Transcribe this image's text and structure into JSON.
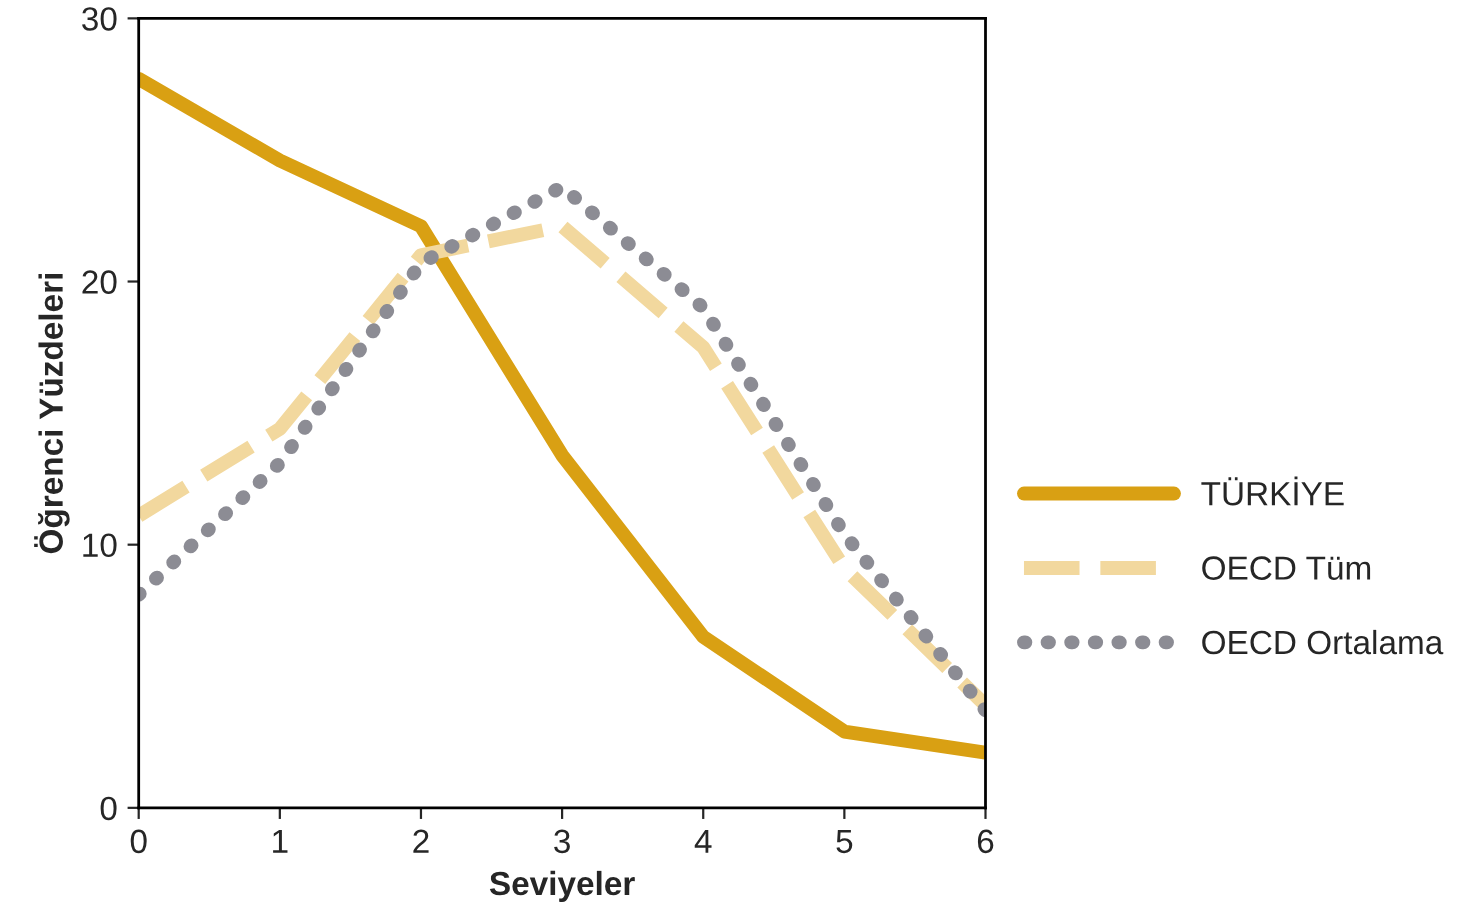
{
  "chart_data": {
    "type": "line",
    "xlabel": "Seviyeler",
    "ylabel": "Öğrenci Yüzdeleri",
    "x": [
      0,
      1,
      2,
      3,
      4,
      5,
      6
    ],
    "series": [
      {
        "name": "TÜRKİYE",
        "color": "#d9a013",
        "line_style": "solid",
        "values": [
          27.7,
          24.6,
          22.1,
          13.4,
          6.5,
          2.9,
          2.1
        ]
      },
      {
        "name": "OECD Tüm",
        "color": "#f2d89e",
        "line_style": "dashed",
        "values": [
          11.1,
          14.4,
          21.0,
          22.1,
          17.5,
          9.1,
          3.9
        ]
      },
      {
        "name": "OECD Ortalama",
        "color": "#8c8c94",
        "line_style": "dotted",
        "values": [
          8.1,
          13.1,
          20.7,
          23.6,
          19.0,
          10.4,
          3.7
        ]
      }
    ],
    "xlim": [
      0,
      6
    ],
    "ylim": [
      0,
      30
    ],
    "xticks": [
      0,
      1,
      2,
      3,
      4,
      5,
      6
    ],
    "yticks": [
      0,
      10,
      20,
      30
    ],
    "grid": false,
    "legend": "right"
  }
}
